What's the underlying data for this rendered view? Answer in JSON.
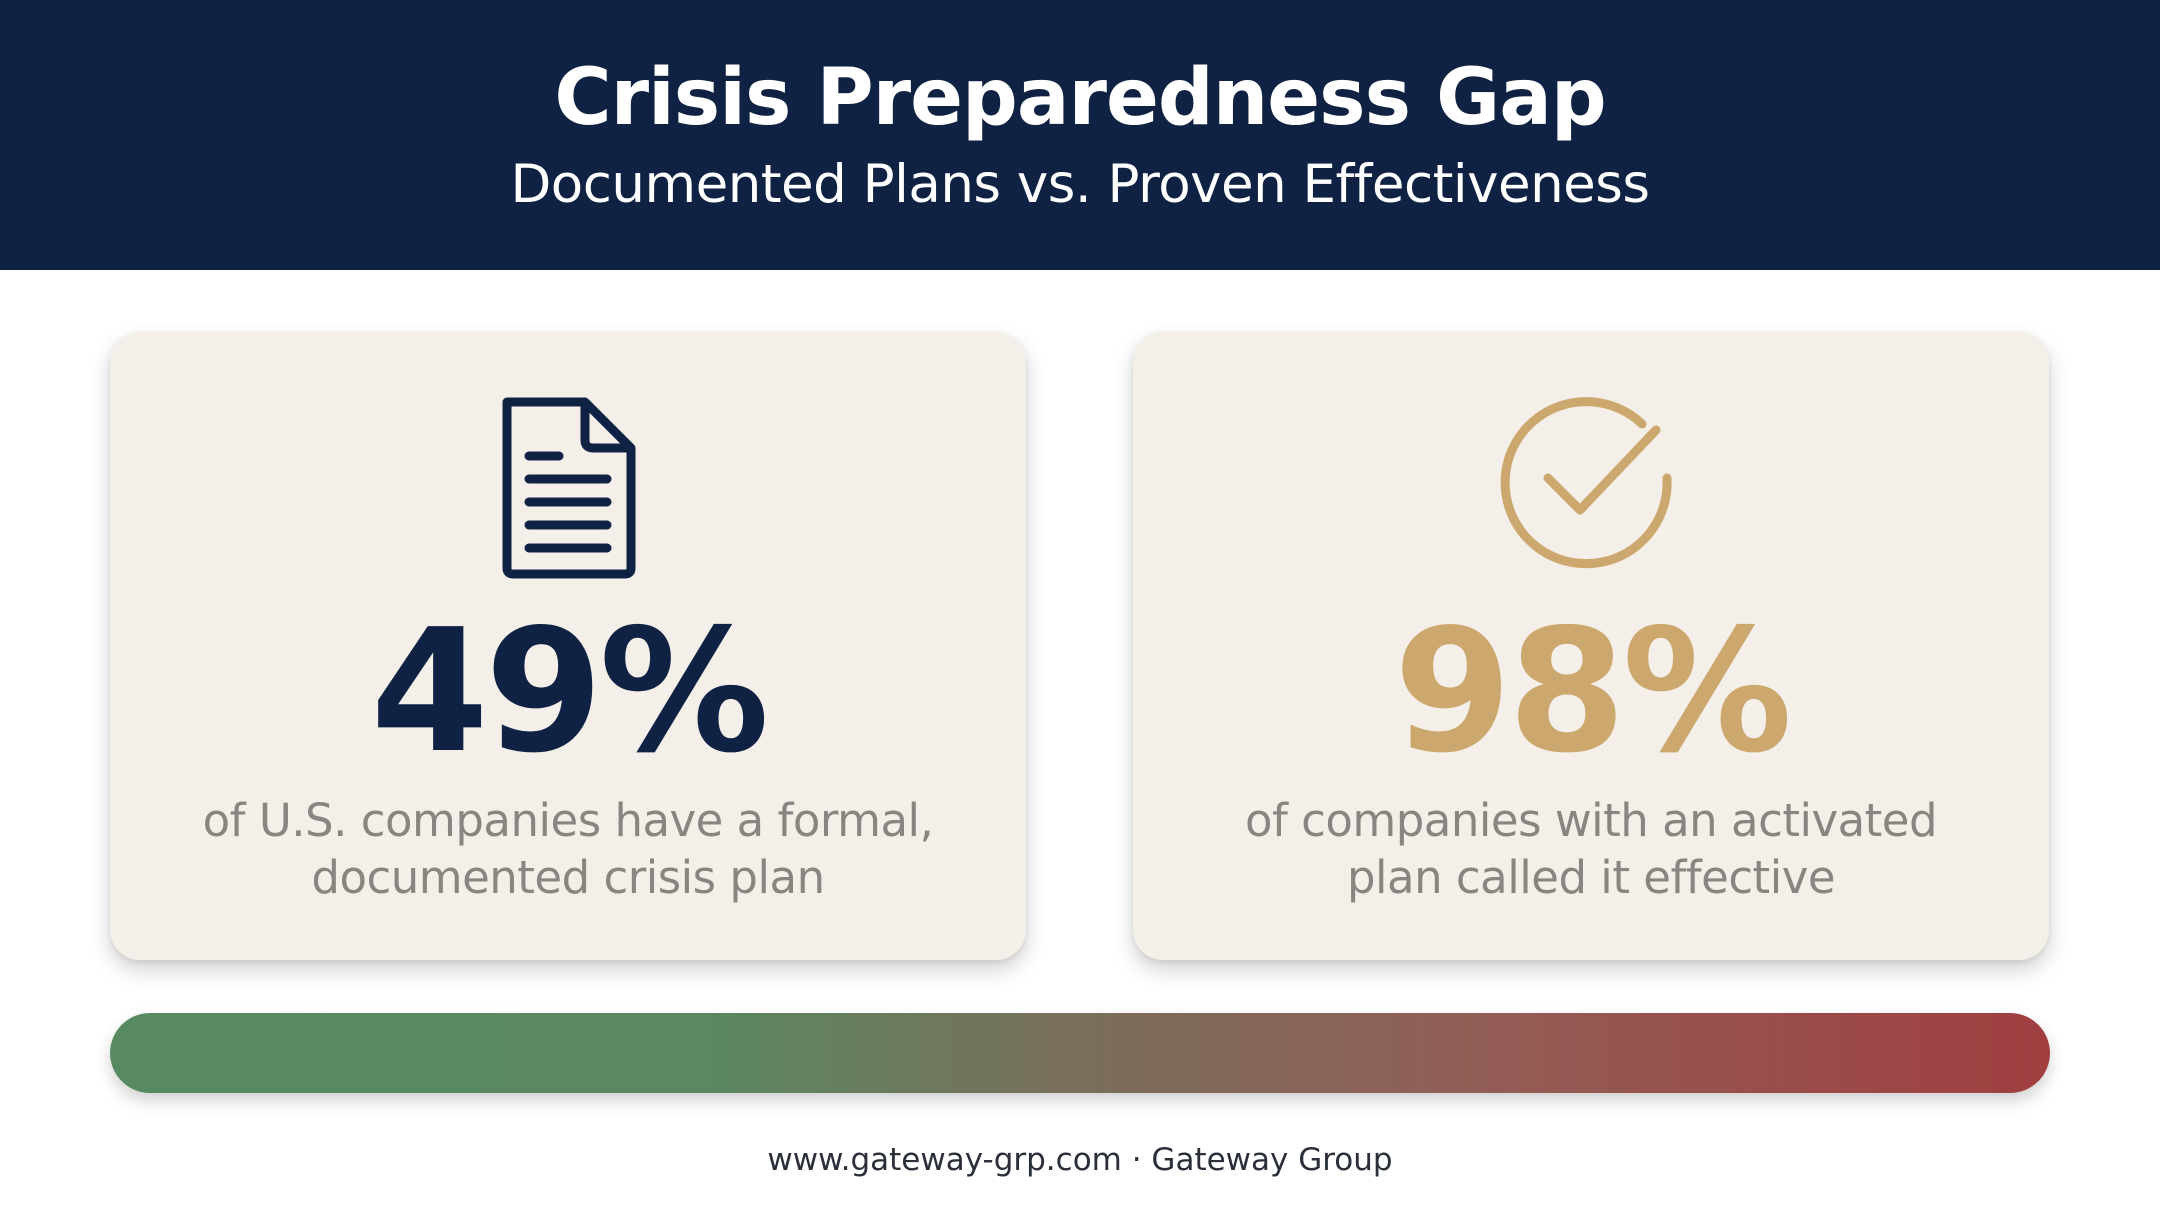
{
  "header": {
    "title": "Crisis Preparedness Gap",
    "subtitle": "Documented Plans vs. Proven Effectiveness"
  },
  "cards": [
    {
      "icon": "document-icon",
      "value": "49%",
      "description_line1": "of U.S. companies have a formal,",
      "description_line2": "documented crisis plan",
      "color": "#0f2244"
    },
    {
      "icon": "check-circle-icon",
      "value": "98%",
      "description_line1": "of companies with an activated",
      "description_line2": "plan called it effective",
      "color": "#cda86e"
    }
  ],
  "gradient_bar": {
    "start_color": "#588a62",
    "end_color": "#a03e40"
  },
  "footer": {
    "text": "www.gateway-grp.com · Gateway Group"
  },
  "colors": {
    "header_background": "#0f2244",
    "card_background": "#f4efe8",
    "accent_gold": "#cda86e"
  }
}
